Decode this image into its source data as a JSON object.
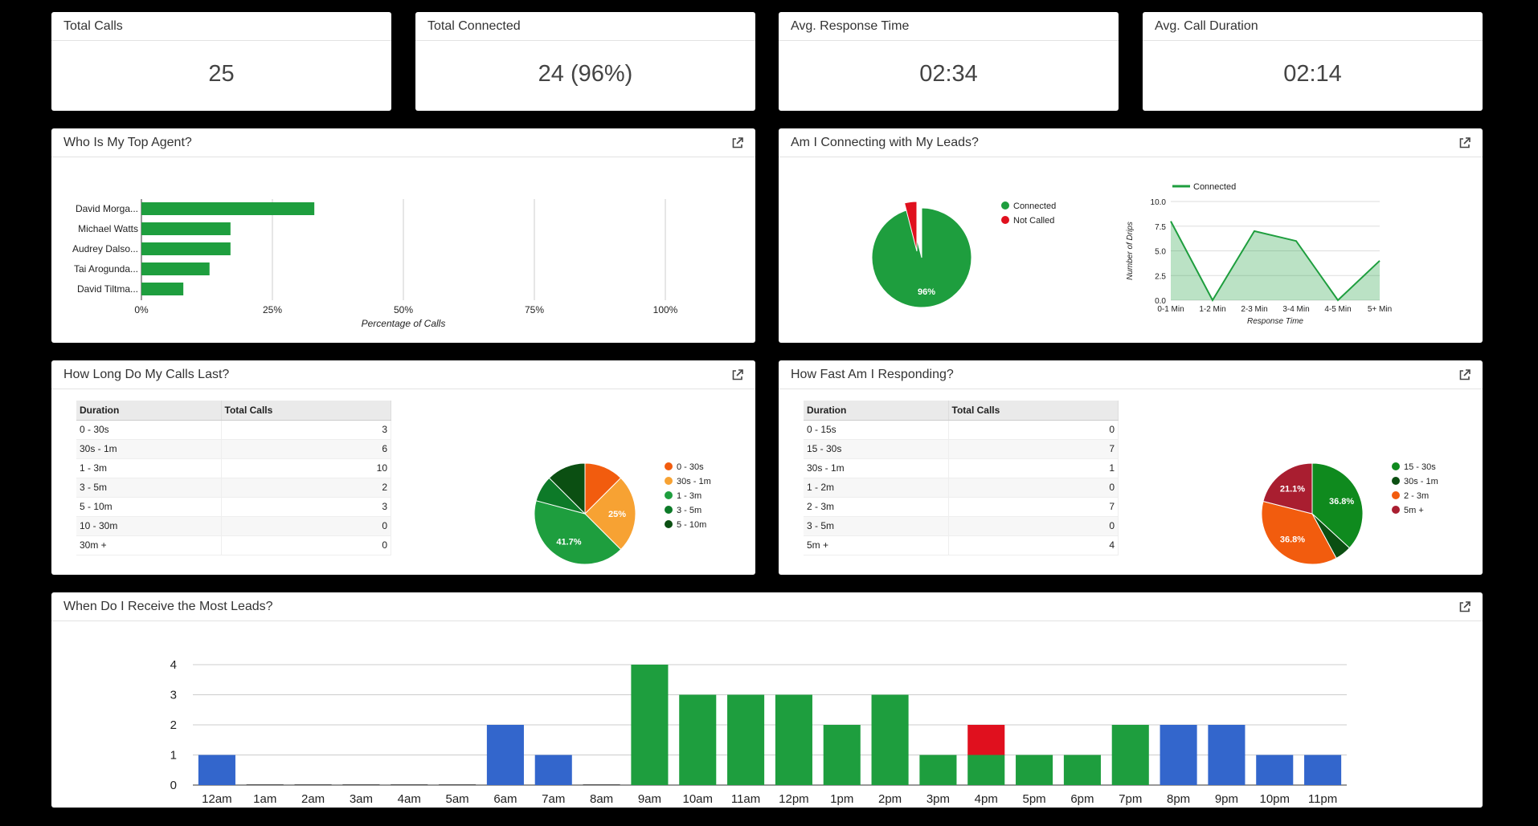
{
  "kpis": [
    {
      "label": "Total Calls",
      "value": "25"
    },
    {
      "label": "Total Connected",
      "value": "24 (96%)"
    },
    {
      "label": "Avg. Response Time",
      "value": "02:34"
    },
    {
      "label": "Avg. Call Duration",
      "value": "02:14"
    }
  ],
  "top_agent": {
    "title": "Who Is My Top Agent?",
    "chart_data": {
      "type": "bar",
      "orientation": "horizontal",
      "categories": [
        "David Morga...",
        "Michael Watts",
        "Audrey Dalso...",
        "Tai Arogunda...",
        "David Tiltma..."
      ],
      "values": [
        33,
        17,
        17,
        13,
        8
      ],
      "xlabel": "Percentage of Calls",
      "xticks": [
        "0%",
        "25%",
        "50%",
        "75%",
        "100%"
      ],
      "xlim": [
        0,
        100
      ],
      "color": "#1e9e3e"
    }
  },
  "leads": {
    "title": "Am I Connecting with My Leads?",
    "pie": {
      "type": "pie",
      "labels": [
        "Connected",
        "Not Called"
      ],
      "values": [
        96,
        4
      ],
      "colors": [
        "#1e9e3e",
        "#e0101e"
      ],
      "slice_label": "96%"
    },
    "line": {
      "type": "area",
      "series_name": "Connected",
      "categories": [
        "0-1 Min",
        "1-2 Min",
        "2-3 Min",
        "3-4 Min",
        "4-5 Min",
        "5+ Min"
      ],
      "values": [
        8,
        0,
        7,
        6,
        0,
        4
      ],
      "yticks": [
        "0.0",
        "2.5",
        "5.0",
        "7.5",
        "10.0"
      ],
      "ylim": [
        0,
        10
      ],
      "xlabel": "Response Time",
      "ylabel": "Number of Drips",
      "color": "#1e9e3e"
    }
  },
  "durations": {
    "title": "How Long Do My Calls Last?",
    "headers": [
      "Duration",
      "Total Calls"
    ],
    "rows": [
      {
        "label": "0 - 30s",
        "value": "3"
      },
      {
        "label": "30s - 1m",
        "value": "6"
      },
      {
        "label": "1 - 3m",
        "value": "10"
      },
      {
        "label": "3 - 5m",
        "value": "2"
      },
      {
        "label": "5 - 10m",
        "value": "3"
      },
      {
        "label": "10 - 30m",
        "value": "0"
      },
      {
        "label": "30m +",
        "value": "0"
      }
    ],
    "pie": {
      "type": "pie",
      "labels": [
        "0 - 30s",
        "30s - 1m",
        "1 - 3m",
        "3 - 5m",
        "5 - 10m"
      ],
      "values": [
        3,
        6,
        10,
        2,
        3
      ],
      "colors": [
        "#f25c0e",
        "#f7a233",
        "#1e9e3e",
        "#0d7a28",
        "#0b4f12"
      ],
      "slice_labels": [
        "",
        "25%",
        "41.7%",
        "",
        ""
      ]
    }
  },
  "responding": {
    "title": "How Fast Am I Responding?",
    "headers": [
      "Duration",
      "Total Calls"
    ],
    "rows": [
      {
        "label": "0 - 15s",
        "value": "0"
      },
      {
        "label": "15 - 30s",
        "value": "7"
      },
      {
        "label": "30s - 1m",
        "value": "1"
      },
      {
        "label": "1 - 2m",
        "value": "0"
      },
      {
        "label": "2 - 3m",
        "value": "7"
      },
      {
        "label": "3 - 5m",
        "value": "0"
      },
      {
        "label": "5m +",
        "value": "4"
      }
    ],
    "pie": {
      "type": "pie",
      "labels": [
        "15 - 30s",
        "30s - 1m",
        "2 - 3m",
        "5m +"
      ],
      "values": [
        7,
        1,
        7,
        4
      ],
      "colors": [
        "#0f8a1e",
        "#0b4f12",
        "#f25c0e",
        "#a91e30"
      ],
      "slice_labels": [
        "36.8%",
        "",
        "36.8%",
        "21.1%"
      ]
    }
  },
  "hourly": {
    "title": "When Do I Receive the Most Leads?",
    "chart_data": {
      "type": "bar",
      "stacked": true,
      "categories": [
        "12am",
        "1am",
        "2am",
        "3am",
        "4am",
        "5am",
        "6am",
        "7am",
        "8am",
        "9am",
        "10am",
        "11am",
        "12pm",
        "1pm",
        "2pm",
        "3pm",
        "4pm",
        "5pm",
        "6pm",
        "7pm",
        "8pm",
        "9pm",
        "10pm",
        "11pm"
      ],
      "series": [
        {
          "color": "#3366cc",
          "values": [
            1,
            0,
            0,
            0,
            0,
            0,
            2,
            1,
            0,
            0,
            0,
            0,
            0,
            0,
            0,
            0,
            0,
            0,
            0,
            0,
            2,
            2,
            1,
            1
          ]
        },
        {
          "color": "#1e9e3e",
          "values": [
            0,
            0,
            0,
            0,
            0,
            0,
            0,
            0,
            0,
            4,
            3,
            3,
            3,
            2,
            3,
            1,
            1,
            1,
            1,
            2,
            0,
            0,
            0,
            0
          ]
        },
        {
          "color": "#e0101e",
          "values": [
            0,
            0,
            0,
            0,
            0,
            0,
            0,
            0,
            0,
            0,
            0,
            0,
            0,
            0,
            0,
            0,
            1,
            0,
            0,
            0,
            0,
            0,
            0,
            0
          ]
        }
      ],
      "yticks": [
        "0",
        "1",
        "2",
        "3",
        "4"
      ],
      "ylim": [
        0,
        4
      ],
      "grid": true
    }
  }
}
